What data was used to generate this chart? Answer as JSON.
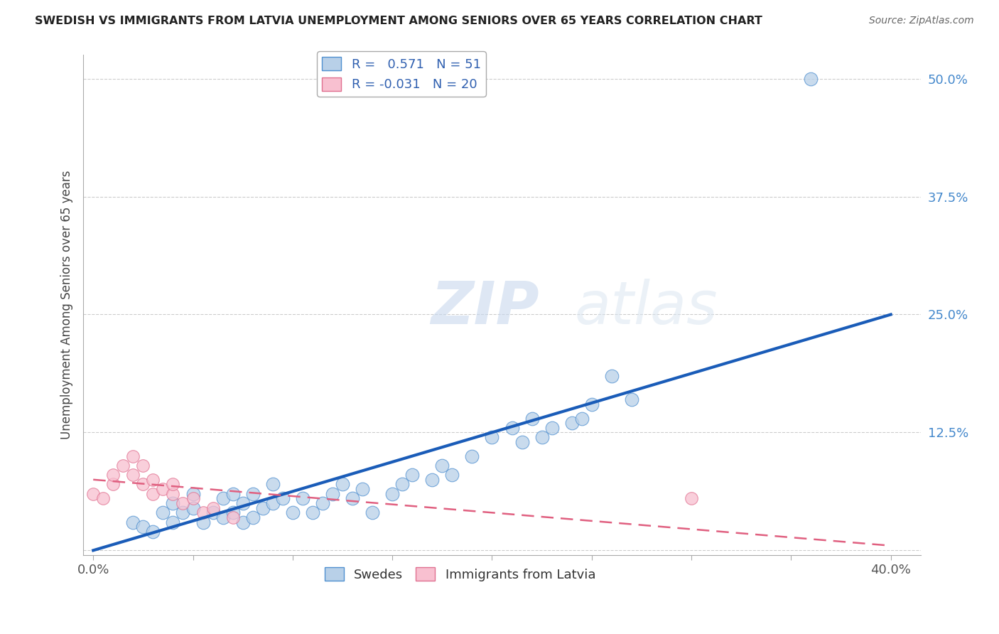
{
  "title": "SWEDISH VS IMMIGRANTS FROM LATVIA UNEMPLOYMENT AMONG SENIORS OVER 65 YEARS CORRELATION CHART",
  "source": "Source: ZipAtlas.com",
  "ylabel": "Unemployment Among Seniors over 65 years",
  "xlim": [
    -0.005,
    0.415
  ],
  "ylim": [
    -0.005,
    0.525
  ],
  "xtick_positions": [
    0.0,
    0.05,
    0.1,
    0.15,
    0.2,
    0.25,
    0.3,
    0.35,
    0.4
  ],
  "xticklabels": [
    "0.0%",
    "",
    "",
    "",
    "",
    "",
    "",
    "",
    "40.0%"
  ],
  "ytick_positions": [
    0.0,
    0.125,
    0.25,
    0.375,
    0.5
  ],
  "ytick_labels": [
    "",
    "12.5%",
    "25.0%",
    "37.5%",
    "50.0%"
  ],
  "blue_r": "0.571",
  "blue_n": "51",
  "pink_r": "-0.031",
  "pink_n": "20",
  "blue_fill_color": "#b8d0e8",
  "pink_fill_color": "#f8c0d0",
  "blue_edge_color": "#5090d0",
  "pink_edge_color": "#e07090",
  "blue_line_color": "#1a5cb8",
  "pink_line_color": "#e06080",
  "legend_r_color": "#3060b0",
  "watermark_zip": "ZIP",
  "watermark_atlas": "atlas",
  "blue_scatter_x": [
    0.02,
    0.025,
    0.03,
    0.035,
    0.04,
    0.04,
    0.045,
    0.05,
    0.05,
    0.055,
    0.06,
    0.065,
    0.065,
    0.07,
    0.07,
    0.075,
    0.075,
    0.08,
    0.08,
    0.085,
    0.09,
    0.09,
    0.095,
    0.1,
    0.105,
    0.11,
    0.115,
    0.12,
    0.125,
    0.13,
    0.135,
    0.14,
    0.15,
    0.155,
    0.16,
    0.17,
    0.175,
    0.18,
    0.19,
    0.2,
    0.21,
    0.215,
    0.22,
    0.225,
    0.23,
    0.24,
    0.245,
    0.25,
    0.26,
    0.27,
    0.36
  ],
  "blue_scatter_y": [
    0.03,
    0.025,
    0.02,
    0.04,
    0.03,
    0.05,
    0.04,
    0.045,
    0.06,
    0.03,
    0.04,
    0.035,
    0.055,
    0.04,
    0.06,
    0.03,
    0.05,
    0.035,
    0.06,
    0.045,
    0.05,
    0.07,
    0.055,
    0.04,
    0.055,
    0.04,
    0.05,
    0.06,
    0.07,
    0.055,
    0.065,
    0.04,
    0.06,
    0.07,
    0.08,
    0.075,
    0.09,
    0.08,
    0.1,
    0.12,
    0.13,
    0.115,
    0.14,
    0.12,
    0.13,
    0.135,
    0.14,
    0.155,
    0.185,
    0.16,
    0.5
  ],
  "pink_scatter_x": [
    0.0,
    0.005,
    0.01,
    0.01,
    0.015,
    0.02,
    0.02,
    0.025,
    0.025,
    0.03,
    0.03,
    0.035,
    0.04,
    0.04,
    0.045,
    0.05,
    0.055,
    0.06,
    0.07,
    0.3
  ],
  "pink_scatter_y": [
    0.06,
    0.055,
    0.07,
    0.08,
    0.09,
    0.1,
    0.08,
    0.07,
    0.09,
    0.06,
    0.075,
    0.065,
    0.06,
    0.07,
    0.05,
    0.055,
    0.04,
    0.045,
    0.035,
    0.055
  ],
  "blue_line_x": [
    0.0,
    0.4
  ],
  "blue_line_y": [
    0.0,
    0.25
  ],
  "pink_line_x": [
    0.0,
    0.4
  ],
  "pink_line_y": [
    0.075,
    0.005
  ]
}
